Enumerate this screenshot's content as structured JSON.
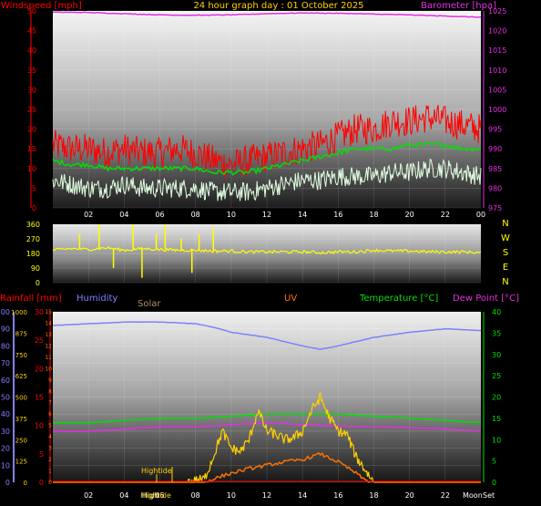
{
  "title": "24 hour graph day : 01 October 2025",
  "colors": {
    "windspeed": "#ff0000",
    "windgust_avg": "#00e000",
    "wind_low": "#e0ffe0",
    "barometer": "#e030e0",
    "direction": "#ffff00",
    "rain_axis": "#ff0000",
    "humidity": "#8080ff",
    "solar": "#ffd000",
    "uv": "#ff7000",
    "temperature": "#00e000",
    "dewpoint": "#e030e0",
    "hightide": "#ffd000"
  },
  "top_panel": {
    "left_label": "Windspeed [mph]",
    "right_label": "Barometer [hpa]",
    "left_ticks": [
      "0",
      "5",
      "10",
      "15",
      "20",
      "25",
      "30",
      "35",
      "40",
      "45",
      "50"
    ],
    "right_ticks": [
      "975",
      "980",
      "985",
      "990",
      "995",
      "1000",
      "1005",
      "1010",
      "1015",
      "1020",
      "1025"
    ],
    "x_ticks": [
      "02",
      "04",
      "06",
      "08",
      "10",
      "12",
      "14",
      "16",
      "18",
      "20",
      "22",
      "00"
    ]
  },
  "middle_panel": {
    "left_ticks": [
      "0",
      "90",
      "180",
      "270",
      "360"
    ],
    "compass": [
      "N",
      "W",
      "S",
      "E",
      "N"
    ]
  },
  "bottom_panel": {
    "rainfall_label": "Rainfall [mm]",
    "humidity_label": "Humidity",
    "solar_label": "Solar",
    "uv_label": "UV",
    "temperature_label": "Temperature [°C]",
    "dewpoint_label": "Dew Point [°C]",
    "humidity_ticks": [
      "0",
      "10",
      "20",
      "30",
      "40",
      "50",
      "60",
      "70",
      "80",
      "90",
      "100"
    ],
    "rain_ticks": [
      "0",
      "5",
      "10",
      "15",
      "20",
      "25",
      "30"
    ],
    "solar_ticks": [
      "0",
      "125",
      "250",
      "375",
      "500",
      "625",
      "750",
      "875",
      "1000"
    ],
    "uv_ticks": [
      "0",
      "1",
      "2",
      "3",
      "4",
      "5",
      "6",
      "7",
      "8",
      "9",
      "10",
      "11",
      "12",
      "13",
      "14",
      "15"
    ],
    "temp_ticks": [
      "0",
      "5",
      "10",
      "15",
      "20",
      "25",
      "30",
      "35",
      "40"
    ],
    "x_ticks": [
      "02",
      "04",
      "High",
      "06",
      "08",
      "10",
      "12",
      "14",
      "16",
      "18",
      "20",
      "22",
      "Moon"
    ],
    "tide_top_label": "Hightide",
    "tide_bottom_label": "Hightide",
    "moon_label": "Moon",
    "set_label": "Set"
  },
  "chart_data": [
    {
      "type": "line",
      "title": "24 hour graph day : 01 October 2025",
      "x_range_hours": [
        0,
        24
      ],
      "ylabel": "Windspeed [mph]",
      "ylim": [
        0,
        50
      ],
      "y2label": "Barometer [hpa]",
      "y2lim": [
        975,
        1025
      ],
      "series": [
        {
          "name": "Windspeed [mph]",
          "axis": "left",
          "x": [
            0,
            1,
            2,
            3,
            4,
            5,
            6,
            7,
            8,
            9,
            10,
            11,
            12,
            13,
            14,
            15,
            16,
            17,
            18,
            19,
            20,
            21,
            22,
            23,
            24
          ],
          "values": [
            16,
            15,
            15,
            14,
            15,
            14,
            14,
            15,
            14,
            12,
            11,
            12,
            13,
            14,
            15,
            16,
            18,
            20,
            20,
            22,
            22,
            23,
            22,
            21,
            20
          ]
        },
        {
          "name": "Average wind",
          "axis": "left",
          "x": [
            0,
            1,
            2,
            3,
            4,
            5,
            6,
            7,
            8,
            9,
            10,
            11,
            12,
            13,
            14,
            15,
            16,
            17,
            18,
            19,
            20,
            21,
            22,
            23,
            24
          ],
          "values": [
            12,
            11,
            11,
            10,
            10,
            10,
            10,
            10,
            10,
            9,
            9,
            9,
            10,
            11,
            12,
            13,
            14,
            15,
            15,
            15,
            16,
            16,
            16,
            15,
            15
          ]
        },
        {
          "name": "Wind low",
          "axis": "left",
          "x": [
            0,
            1,
            2,
            3,
            4,
            5,
            6,
            7,
            8,
            9,
            10,
            11,
            12,
            13,
            14,
            15,
            16,
            17,
            18,
            19,
            20,
            21,
            22,
            23,
            24
          ],
          "values": [
            7,
            6,
            5,
            5,
            6,
            5,
            5,
            5,
            5,
            4,
            4,
            4,
            5,
            6,
            7,
            7,
            8,
            8,
            8,
            9,
            9,
            10,
            10,
            9,
            8
          ]
        },
        {
          "name": "Barometer [hpa]",
          "axis": "right",
          "x": [
            0,
            2,
            4,
            6,
            8,
            10,
            12,
            14,
            16,
            18,
            20,
            22,
            24
          ],
          "values": [
            1024.7,
            1024.6,
            1024.3,
            1024.0,
            1023.9,
            1024.0,
            1024.3,
            1024.5,
            1024.4,
            1024.2,
            1024.0,
            1023.7,
            1023.4
          ]
        }
      ]
    },
    {
      "type": "scatter",
      "ylabel": "Wind direction",
      "ylim": [
        0,
        360
      ],
      "x": [
        0,
        1,
        2,
        3,
        4,
        5,
        6,
        7,
        8,
        9,
        10,
        11,
        12,
        13,
        14,
        15,
        16,
        17,
        18,
        19,
        20,
        21,
        22,
        23,
        24
      ],
      "values": [
        200,
        210,
        205,
        215,
        200,
        210,
        205,
        200,
        200,
        195,
        195,
        190,
        190,
        190,
        190,
        185,
        190,
        190,
        200,
        195,
        195,
        190,
        190,
        190,
        185
      ]
    },
    {
      "type": "line",
      "x_range_hours": [
        0,
        24
      ],
      "series": [
        {
          "name": "Humidity",
          "axis": "humidity",
          "ylim": [
            0,
            100
          ],
          "x": [
            0,
            2,
            4,
            6,
            8,
            9,
            10,
            12,
            14,
            15,
            16,
            18,
            20,
            22,
            24
          ],
          "values": [
            92,
            93,
            94,
            94,
            93,
            91,
            88,
            85,
            80,
            78,
            80,
            85,
            88,
            90,
            89
          ]
        },
        {
          "name": "Temperature [°C]",
          "axis": "temperature",
          "ylim": [
            0,
            40
          ],
          "x": [
            0,
            2,
            4,
            6,
            8,
            10,
            12,
            14,
            16,
            18,
            20,
            22,
            24
          ],
          "values": [
            14,
            14,
            14.5,
            15,
            15,
            15.5,
            16,
            16,
            16,
            15.5,
            15,
            14.5,
            14
          ]
        },
        {
          "name": "Dew Point [°C]",
          "axis": "temperature",
          "ylim": [
            0,
            40
          ],
          "x": [
            0,
            2,
            4,
            6,
            8,
            10,
            12,
            14,
            16,
            18,
            20,
            22,
            24
          ],
          "values": [
            12,
            12,
            12.5,
            13,
            13,
            13.5,
            14,
            13.5,
            13.2,
            13,
            12.8,
            12.5,
            12
          ]
        },
        {
          "name": "Solar",
          "axis": "solar",
          "ylim": [
            0,
            1000
          ],
          "x": [
            0,
            7.5,
            8.5,
            9,
            9.5,
            10,
            10.5,
            11,
            11.5,
            12,
            12.5,
            13,
            13.5,
            14,
            14.5,
            15,
            15.5,
            16,
            16.5,
            17,
            18,
            24
          ],
          "values": [
            0,
            0,
            20,
            150,
            300,
            200,
            180,
            250,
            420,
            300,
            280,
            250,
            260,
            300,
            420,
            500,
            380,
            300,
            280,
            150,
            0,
            0
          ]
        },
        {
          "name": "UV",
          "axis": "uv",
          "ylim": [
            0,
            15
          ],
          "x": [
            0,
            8.5,
            9,
            10,
            11,
            12,
            13,
            14,
            15,
            16,
            17,
            17.5,
            18,
            24
          ],
          "values": [
            0,
            0,
            0.3,
            0.8,
            1.2,
            1.5,
            1.8,
            2.0,
            2.5,
            1.8,
            0.8,
            0.2,
            0,
            0
          ]
        }
      ]
    }
  ]
}
